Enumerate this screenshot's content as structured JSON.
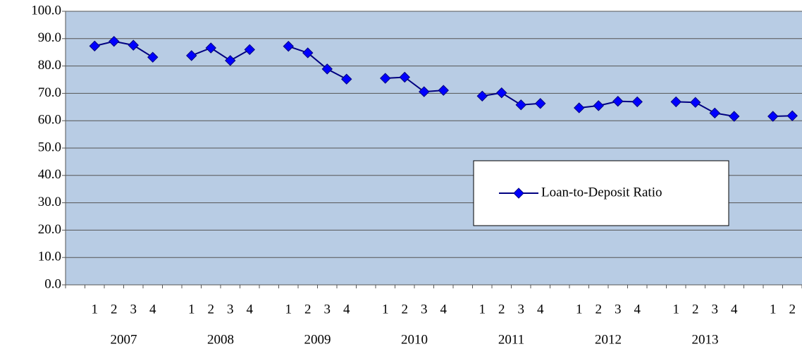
{
  "chart_data": {
    "type": "line",
    "categories": [
      null,
      "1",
      "2",
      "3",
      "4",
      null,
      "1",
      "2",
      "3",
      "4",
      null,
      "1",
      "2",
      "3",
      "4",
      null,
      "1",
      "2",
      "3",
      "4",
      null,
      "1",
      "2",
      "3",
      "4",
      null,
      "1",
      "2",
      "3",
      "4",
      null,
      "1",
      "2",
      "3",
      "4",
      null,
      "1",
      "2"
    ],
    "year_labels": [
      "2007",
      "2008",
      "2009",
      "2010",
      "2011",
      "2012",
      "2013"
    ],
    "series": [
      {
        "name": "Loan-to-Deposit Ratio",
        "color": "#000080",
        "marker_color": "#0000ff",
        "values": [
          null,
          87.3,
          89.0,
          87.6,
          83.2,
          null,
          83.8,
          86.6,
          82.0,
          86.0,
          null,
          87.2,
          84.8,
          78.9,
          75.2,
          null,
          75.5,
          75.9,
          70.6,
          71.1,
          null,
          69.0,
          70.2,
          65.8,
          66.3,
          null,
          64.7,
          65.5,
          67.1,
          66.9,
          null,
          66.9,
          66.7,
          62.8,
          61.6,
          null,
          61.6,
          61.8
        ]
      }
    ],
    "ylim": [
      0,
      100
    ],
    "yticks": [
      {
        "value": 0,
        "label": "0.0"
      },
      {
        "value": 10,
        "label": "10.0"
      },
      {
        "value": 20,
        "label": "20.0"
      },
      {
        "value": 30,
        "label": "30.0"
      },
      {
        "value": 40,
        "label": "40.0"
      },
      {
        "value": 50,
        "label": "50.0"
      },
      {
        "value": 60,
        "label": "60.0"
      },
      {
        "value": 70,
        "label": "70.0"
      },
      {
        "value": 80,
        "label": "80.0"
      },
      {
        "value": 90,
        "label": "90.0"
      },
      {
        "value": 100,
        "label": "100.0"
      }
    ],
    "grid": true,
    "plot_background": "#b8cce4"
  }
}
